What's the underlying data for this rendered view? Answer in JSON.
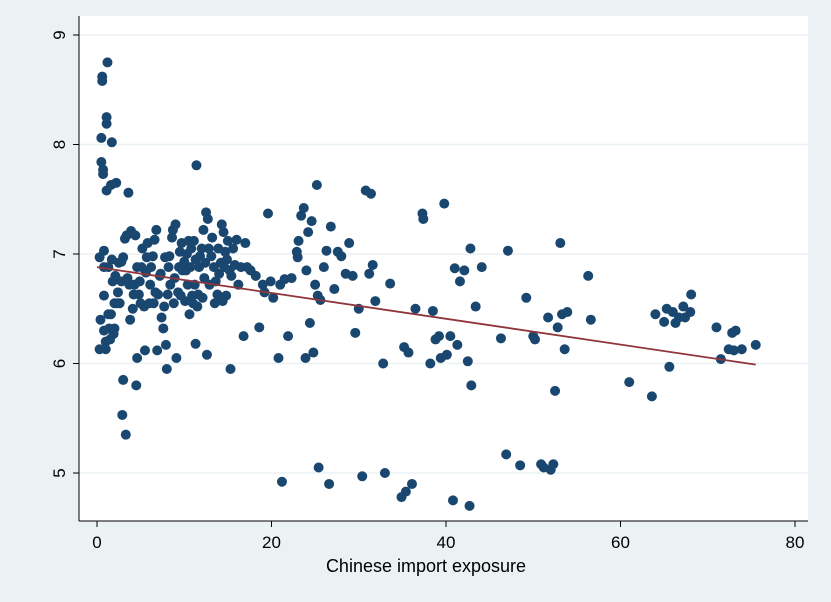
{
  "chart_data": {
    "type": "scatter",
    "title": "",
    "xlabel": "Chinese import exposure",
    "ylabel": "",
    "xlim": [
      0,
      80
    ],
    "ylim": [
      4.6,
      9.2
    ],
    "x_ticks": [
      0,
      20,
      40,
      60,
      80
    ],
    "y_ticks": [
      5,
      6,
      7,
      8,
      9
    ],
    "grid": "horizontal",
    "marker_color": "#1a476f",
    "line_color": "#90353b",
    "background_color": "#eaf2f3",
    "plot_background_color": "#ffffff",
    "fit_line": {
      "x": [
        0,
        75.5
      ],
      "y": [
        6.88,
        5.99
      ]
    },
    "points": [
      [
        0.3,
        6.97
      ],
      [
        0.3,
        6.13
      ],
      [
        0.4,
        6.4
      ],
      [
        0.5,
        8.06
      ],
      [
        0.5,
        7.84
      ],
      [
        0.6,
        8.58
      ],
      [
        0.6,
        8.62
      ],
      [
        0.7,
        7.77
      ],
      [
        0.7,
        7.73
      ],
      [
        0.8,
        7.03
      ],
      [
        0.8,
        6.88
      ],
      [
        0.8,
        6.62
      ],
      [
        0.8,
        6.3
      ],
      [
        1.0,
        6.2
      ],
      [
        1.0,
        6.13
      ],
      [
        1.1,
        7.58
      ],
      [
        1.1,
        8.19
      ],
      [
        1.1,
        8.25
      ],
      [
        1.2,
        8.75
      ],
      [
        1.3,
        6.88
      ],
      [
        1.3,
        6.45
      ],
      [
        1.4,
        6.32
      ],
      [
        1.5,
        6.22
      ],
      [
        1.6,
        6.45
      ],
      [
        1.6,
        7.63
      ],
      [
        1.7,
        8.02
      ],
      [
        1.7,
        6.95
      ],
      [
        1.8,
        6.75
      ],
      [
        1.9,
        6.27
      ],
      [
        2.0,
        6.32
      ],
      [
        2.0,
        6.55
      ],
      [
        2.1,
        6.8
      ],
      [
        2.2,
        7.65
      ],
      [
        2.3,
        6.55
      ],
      [
        2.4,
        6.65
      ],
      [
        2.5,
        6.92
      ],
      [
        2.6,
        6.55
      ],
      [
        2.8,
        6.93
      ],
      [
        2.8,
        6.75
      ],
      [
        2.9,
        5.53
      ],
      [
        3.0,
        5.85
      ],
      [
        3.0,
        6.97
      ],
      [
        3.2,
        7.14
      ],
      [
        3.3,
        5.35
      ],
      [
        3.4,
        7.17
      ],
      [
        3.5,
        6.78
      ],
      [
        3.6,
        7.56
      ],
      [
        3.7,
        6.72
      ],
      [
        3.8,
        6.4
      ],
      [
        3.9,
        7.21
      ],
      [
        4.1,
        6.5
      ],
      [
        4.2,
        6.63
      ],
      [
        4.3,
        6.72
      ],
      [
        4.4,
        7.17
      ],
      [
        4.5,
        5.8
      ],
      [
        4.6,
        6.05
      ],
      [
        4.6,
        6.88
      ],
      [
        4.8,
        6.63
      ],
      [
        4.9,
        6.75
      ],
      [
        5.0,
        6.55
      ],
      [
        5.1,
        6.88
      ],
      [
        5.2,
        7.05
      ],
      [
        5.4,
        6.52
      ],
      [
        5.5,
        6.12
      ],
      [
        5.6,
        6.83
      ],
      [
        5.7,
        6.97
      ],
      [
        5.8,
        7.1
      ],
      [
        6.0,
        6.55
      ],
      [
        6.1,
        6.72
      ],
      [
        6.2,
        6.88
      ],
      [
        6.4,
        6.98
      ],
      [
        6.5,
        6.55
      ],
      [
        6.6,
        7.13
      ],
      [
        6.7,
        6.65
      ],
      [
        6.8,
        7.22
      ],
      [
        6.9,
        6.12
      ],
      [
        7.0,
        6.63
      ],
      [
        7.2,
        6.8
      ],
      [
        7.3,
        6.82
      ],
      [
        7.4,
        6.42
      ],
      [
        7.6,
        6.32
      ],
      [
        7.7,
        6.52
      ],
      [
        7.8,
        6.97
      ],
      [
        7.9,
        6.17
      ],
      [
        8.0,
        5.95
      ],
      [
        8.1,
        6.63
      ],
      [
        8.2,
        6.88
      ],
      [
        8.3,
        6.98
      ],
      [
        8.4,
        6.72
      ],
      [
        8.6,
        7.15
      ],
      [
        8.7,
        7.22
      ],
      [
        8.8,
        6.55
      ],
      [
        8.9,
        6.78
      ],
      [
        9.0,
        7.27
      ],
      [
        9.1,
        6.05
      ],
      [
        9.3,
        6.65
      ],
      [
        9.4,
        6.88
      ],
      [
        9.5,
        7.02
      ],
      [
        9.6,
        6.62
      ],
      [
        9.7,
        7.1
      ],
      [
        9.8,
        6.85
      ],
      [
        10.0,
        6.93
      ],
      [
        10.1,
        6.57
      ],
      [
        10.2,
        6.85
      ],
      [
        10.3,
        7.0
      ],
      [
        10.4,
        6.72
      ],
      [
        10.5,
        7.12
      ],
      [
        10.6,
        6.45
      ],
      [
        10.7,
        6.88
      ],
      [
        10.8,
        7.05
      ],
      [
        10.9,
        6.62
      ],
      [
        11.0,
        6.55
      ],
      [
        11.1,
        7.12
      ],
      [
        11.2,
        6.72
      ],
      [
        11.3,
        6.95
      ],
      [
        11.3,
        6.18
      ],
      [
        11.4,
        7.81
      ],
      [
        11.5,
        6.52
      ],
      [
        11.6,
        6.63
      ],
      [
        11.7,
        6.88
      ],
      [
        11.8,
        6.98
      ],
      [
        12.0,
        7.05
      ],
      [
        12.1,
        6.6
      ],
      [
        12.2,
        7.22
      ],
      [
        12.3,
        6.78
      ],
      [
        12.4,
        6.92
      ],
      [
        12.5,
        7.38
      ],
      [
        12.6,
        6.08
      ],
      [
        12.7,
        7.32
      ],
      [
        12.8,
        7.05
      ],
      [
        12.9,
        6.72
      ],
      [
        13.1,
        6.98
      ],
      [
        13.2,
        7.15
      ],
      [
        13.4,
        6.88
      ],
      [
        13.5,
        6.55
      ],
      [
        13.6,
        6.75
      ],
      [
        13.8,
        6.63
      ],
      [
        13.9,
        7.05
      ],
      [
        14.0,
        6.82
      ],
      [
        14.2,
        6.92
      ],
      [
        14.3,
        7.27
      ],
      [
        14.4,
        6.57
      ],
      [
        14.5,
        7.2
      ],
      [
        14.6,
        6.88
      ],
      [
        14.7,
        7.02
      ],
      [
        14.8,
        6.62
      ],
      [
        14.9,
        6.95
      ],
      [
        15.0,
        7.12
      ],
      [
        15.2,
        6.85
      ],
      [
        15.3,
        5.95
      ],
      [
        15.4,
        6.8
      ],
      [
        15.6,
        7.05
      ],
      [
        15.8,
        6.9
      ],
      [
        16.0,
        7.13
      ],
      [
        16.2,
        6.72
      ],
      [
        16.5,
        6.88
      ],
      [
        16.8,
        6.25
      ],
      [
        17.0,
        7.1
      ],
      [
        17.2,
        6.88
      ],
      [
        17.6,
        6.85
      ],
      [
        18.2,
        6.8
      ],
      [
        18.6,
        6.33
      ],
      [
        19.0,
        6.72
      ],
      [
        19.2,
        6.65
      ],
      [
        19.6,
        7.37
      ],
      [
        19.9,
        6.75
      ],
      [
        20.2,
        6.6
      ],
      [
        20.8,
        6.05
      ],
      [
        21.0,
        6.72
      ],
      [
        21.2,
        4.92
      ],
      [
        21.5,
        6.77
      ],
      [
        21.9,
        6.25
      ],
      [
        22.3,
        6.78
      ],
      [
        22.9,
        7.02
      ],
      [
        23.0,
        6.97
      ],
      [
        23.1,
        7.12
      ],
      [
        23.4,
        7.35
      ],
      [
        23.7,
        7.42
      ],
      [
        23.9,
        6.05
      ],
      [
        24.0,
        6.85
      ],
      [
        24.2,
        7.2
      ],
      [
        24.4,
        6.37
      ],
      [
        24.6,
        7.3
      ],
      [
        24.8,
        6.1
      ],
      [
        25.0,
        6.72
      ],
      [
        25.2,
        7.63
      ],
      [
        25.3,
        6.62
      ],
      [
        25.4,
        5.05
      ],
      [
        25.6,
        6.58
      ],
      [
        26.0,
        6.88
      ],
      [
        26.3,
        7.03
      ],
      [
        26.6,
        4.9
      ],
      [
        26.8,
        7.25
      ],
      [
        27.2,
        6.68
      ],
      [
        27.6,
        7.02
      ],
      [
        28.0,
        6.98
      ],
      [
        28.5,
        6.82
      ],
      [
        28.9,
        7.1
      ],
      [
        29.3,
        6.8
      ],
      [
        29.6,
        6.28
      ],
      [
        30.0,
        6.5
      ],
      [
        30.4,
        4.97
      ],
      [
        30.8,
        7.58
      ],
      [
        31.2,
        6.82
      ],
      [
        31.4,
        7.55
      ],
      [
        31.6,
        6.9
      ],
      [
        31.9,
        6.57
      ],
      [
        32.8,
        6.0
      ],
      [
        33.0,
        5.0
      ],
      [
        33.6,
        6.73
      ],
      [
        34.9,
        4.78
      ],
      [
        35.2,
        6.15
      ],
      [
        35.4,
        4.83
      ],
      [
        35.7,
        6.1
      ],
      [
        36.1,
        4.9
      ],
      [
        36.5,
        6.5
      ],
      [
        37.3,
        7.37
      ],
      [
        37.4,
        7.32
      ],
      [
        38.2,
        6.0
      ],
      [
        38.5,
        6.48
      ],
      [
        38.8,
        6.22
      ],
      [
        39.2,
        6.25
      ],
      [
        39.4,
        6.05
      ],
      [
        39.8,
        7.46
      ],
      [
        40.1,
        6.08
      ],
      [
        40.5,
        6.25
      ],
      [
        40.8,
        4.75
      ],
      [
        41.0,
        6.87
      ],
      [
        41.3,
        6.17
      ],
      [
        41.6,
        6.75
      ],
      [
        42.1,
        6.85
      ],
      [
        42.5,
        6.02
      ],
      [
        42.7,
        4.7
      ],
      [
        42.8,
        7.05
      ],
      [
        42.9,
        5.8
      ],
      [
        43.4,
        6.52
      ],
      [
        44.1,
        6.88
      ],
      [
        46.3,
        6.23
      ],
      [
        46.9,
        5.17
      ],
      [
        47.1,
        7.03
      ],
      [
        48.5,
        5.07
      ],
      [
        49.2,
        6.6
      ],
      [
        50.0,
        6.25
      ],
      [
        50.2,
        6.22
      ],
      [
        50.9,
        5.08
      ],
      [
        51.2,
        5.05
      ],
      [
        51.7,
        6.42
      ],
      [
        52.0,
        5.03
      ],
      [
        52.3,
        5.08
      ],
      [
        52.5,
        5.75
      ],
      [
        52.8,
        6.33
      ],
      [
        53.1,
        7.1
      ],
      [
        53.3,
        6.45
      ],
      [
        53.6,
        6.13
      ],
      [
        53.9,
        6.47
      ],
      [
        56.3,
        6.8
      ],
      [
        56.6,
        6.4
      ],
      [
        61.0,
        5.83
      ],
      [
        63.6,
        5.7
      ],
      [
        64.0,
        6.45
      ],
      [
        65.0,
        6.38
      ],
      [
        65.3,
        6.5
      ],
      [
        65.6,
        5.97
      ],
      [
        66.0,
        6.47
      ],
      [
        66.3,
        6.37
      ],
      [
        66.7,
        6.42
      ],
      [
        67.2,
        6.52
      ],
      [
        67.4,
        6.42
      ],
      [
        68.0,
        6.47
      ],
      [
        68.1,
        6.63
      ],
      [
        71.0,
        6.33
      ],
      [
        71.5,
        6.04
      ],
      [
        72.4,
        6.13
      ],
      [
        72.8,
        6.28
      ],
      [
        73.0,
        6.12
      ],
      [
        73.2,
        6.3
      ],
      [
        73.9,
        6.13
      ],
      [
        75.5,
        6.17
      ]
    ]
  }
}
